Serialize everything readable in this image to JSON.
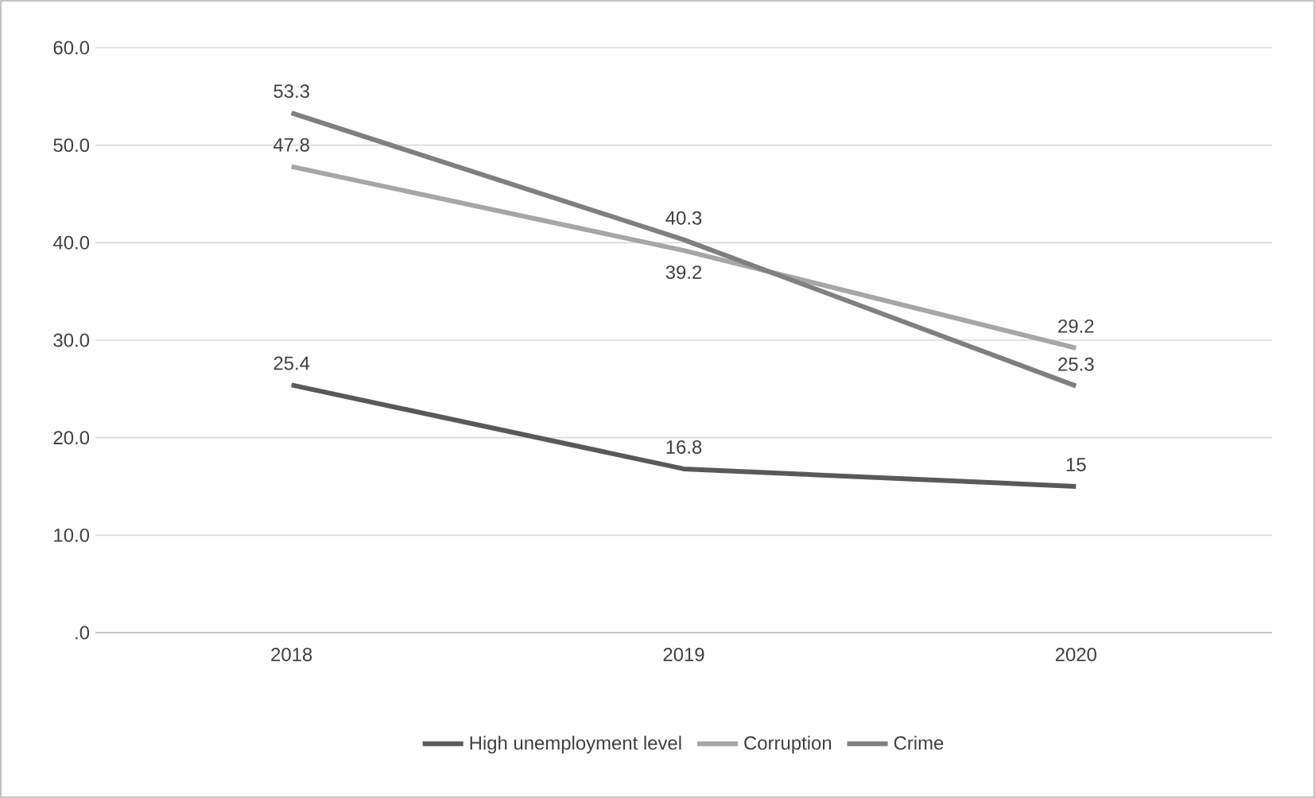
{
  "chart_data": {
    "type": "line",
    "categories": [
      "2018",
      "2019",
      "2020"
    ],
    "series": [
      {
        "name": "High unemployment level",
        "color": "#595959",
        "values": [
          25.4,
          16.8,
          15
        ]
      },
      {
        "name": "Corruption",
        "color": "#a6a6a6",
        "values": [
          47.8,
          39.2,
          29.2
        ]
      },
      {
        "name": "Crime",
        "color": "#7f7f7f",
        "values": [
          53.3,
          40.3,
          25.3
        ]
      }
    ],
    "ylim": [
      0,
      60
    ],
    "yticks": [
      {
        "value": 0,
        "label": ".0"
      },
      {
        "value": 10,
        "label": "10.0"
      },
      {
        "value": 20,
        "label": "20.0"
      },
      {
        "value": 30,
        "label": "30.0"
      },
      {
        "value": 40,
        "label": "40.0"
      },
      {
        "value": 50,
        "label": "50.0"
      },
      {
        "value": 60,
        "label": "60.0"
      }
    ],
    "grid": "y",
    "legend": "bottom",
    "data_labels": true
  }
}
